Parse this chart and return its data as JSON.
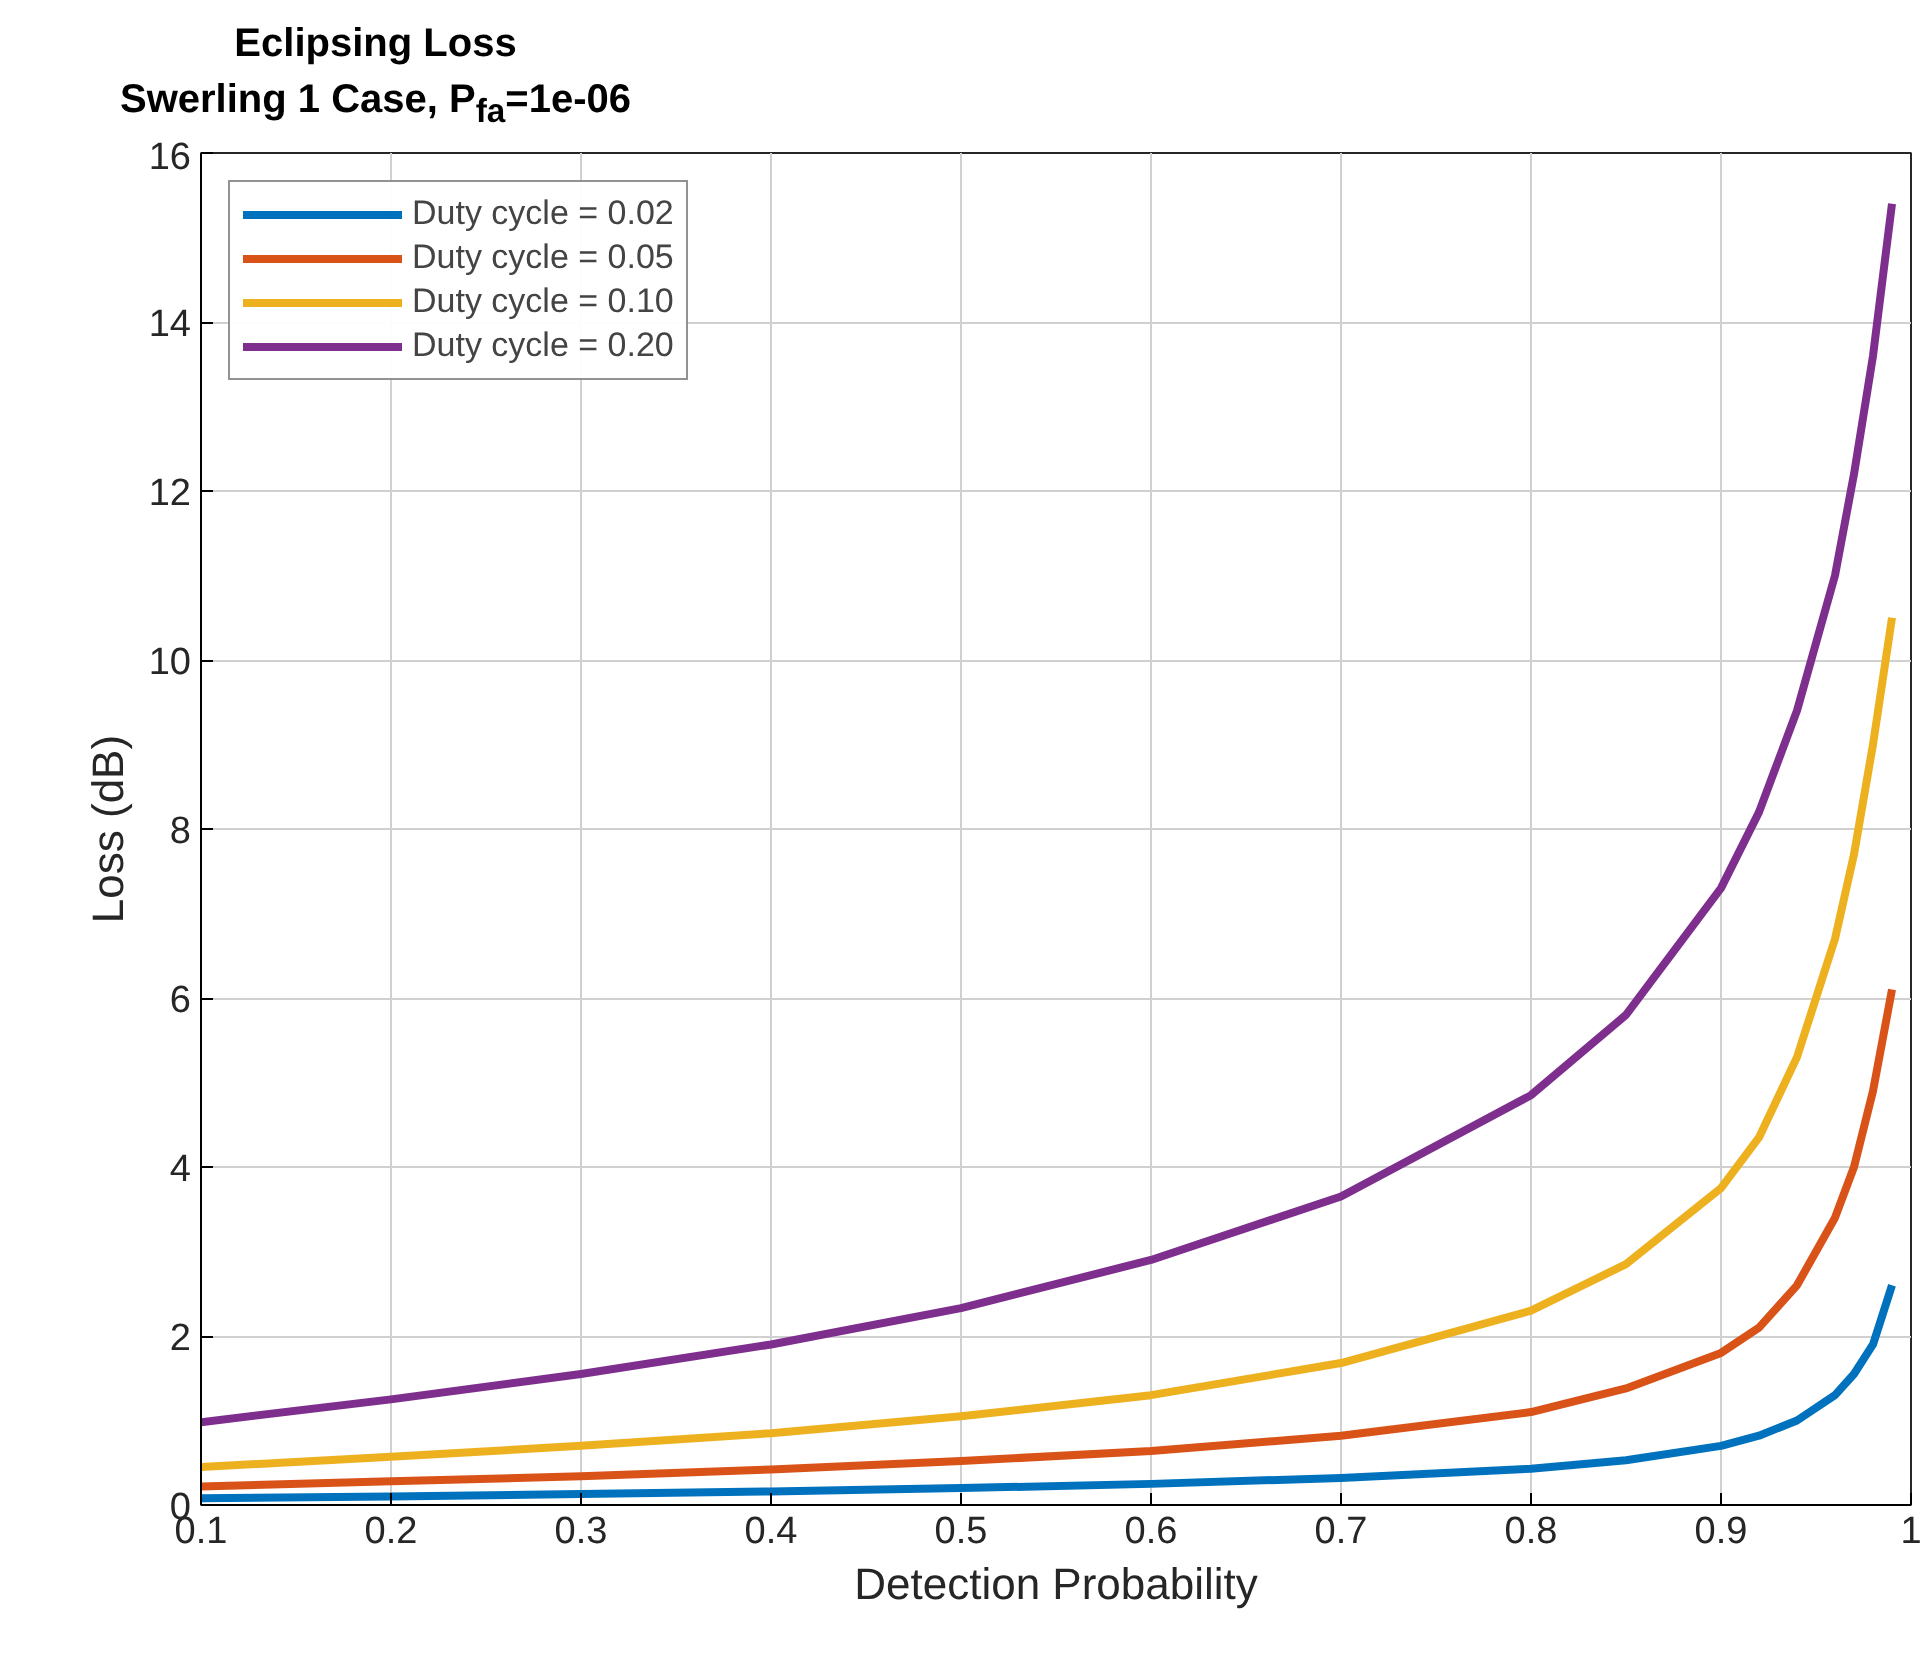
{
  "chart_data": {
    "type": "line",
    "title": "Eclipsing Loss",
    "subtitle": "Swerling 1 Case, P$_{fa}$=1e-06",
    "xlabel": "Detection Probability",
    "ylabel": "Loss (dB)",
    "x": [
      0.1,
      0.2,
      0.3,
      0.4,
      0.5,
      0.6,
      0.7,
      0.8,
      0.85,
      0.9,
      0.92,
      0.94,
      0.96,
      0.97,
      0.98,
      0.99
    ],
    "series": [
      {
        "name": "Duty cycle = 0.02",
        "color": "#0072bd",
        "values": [
          0.08,
          0.1,
          0.13,
          0.16,
          0.2,
          0.25,
          0.32,
          0.43,
          0.53,
          0.7,
          0.82,
          1.0,
          1.3,
          1.55,
          1.9,
          2.6
        ]
      },
      {
        "name": "Duty cycle = 0.05",
        "color": "#d95319",
        "values": [
          0.22,
          0.28,
          0.34,
          0.42,
          0.52,
          0.64,
          0.82,
          1.1,
          1.38,
          1.8,
          2.1,
          2.6,
          3.4,
          4.0,
          4.9,
          6.1
        ]
      },
      {
        "name": "Duty cycle = 0.10",
        "color": "#edb120",
        "values": [
          0.45,
          0.57,
          0.7,
          0.85,
          1.05,
          1.3,
          1.68,
          2.3,
          2.85,
          3.75,
          4.35,
          5.3,
          6.7,
          7.7,
          9.0,
          10.5
        ]
      },
      {
        "name": "Duty cycle = 0.20",
        "color": "#7e2f8e",
        "values": [
          0.98,
          1.25,
          1.55,
          1.9,
          2.33,
          2.9,
          3.65,
          4.85,
          5.8,
          7.3,
          8.2,
          9.4,
          11.0,
          12.2,
          13.6,
          15.4
        ]
      }
    ],
    "xlim": [
      0.1,
      1
    ],
    "xticks": [
      0.1,
      0.2,
      0.3,
      0.4,
      0.5,
      0.6,
      0.7,
      0.8,
      0.9,
      1
    ],
    "ylim": [
      0,
      16
    ],
    "yticks": [
      0,
      2,
      4,
      6,
      8,
      10,
      12,
      14,
      16
    ],
    "grid": true,
    "legend": "top left",
    "line_style": "solid",
    "marker": "none"
  }
}
